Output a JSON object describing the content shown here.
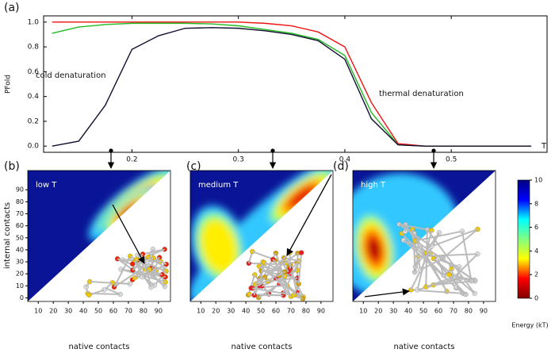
{
  "chart_data": [
    {
      "type": "line",
      "panel": "(a)",
      "ylabel": "PFold",
      "xlabel": "T",
      "annotations": [
        "cold denaturation",
        "thermal denaturation"
      ],
      "x": [
        0.125,
        0.15,
        0.175,
        0.2,
        0.225,
        0.25,
        0.275,
        0.3,
        0.325,
        0.35,
        0.375,
        0.4,
        0.425,
        0.45,
        0.475,
        0.5,
        0.525,
        0.55,
        0.575
      ],
      "series": [
        {
          "color": "#22bb22",
          "values": [
            0.91,
            0.96,
            0.98,
            0.99,
            0.99,
            0.99,
            0.985,
            0.97,
            0.94,
            0.91,
            0.86,
            0.73,
            0.27,
            0.01,
            0,
            0,
            0,
            0,
            0
          ]
        },
        {
          "color": "#ee1111",
          "values": [
            1,
            1,
            1,
            1,
            1,
            1,
            1,
            1,
            0.99,
            0.97,
            0.92,
            0.8,
            0.35,
            0.02,
            0,
            0,
            0,
            0,
            0
          ]
        },
        {
          "color": "#101030",
          "values": [
            0,
            0.04,
            0.33,
            0.78,
            0.89,
            0.95,
            0.955,
            0.95,
            0.93,
            0.9,
            0.85,
            0.7,
            0.22,
            0.01,
            0,
            0,
            0,
            0,
            0
          ]
        }
      ],
      "xlim": [
        0.117,
        0.59
      ],
      "ylim": [
        -0.05,
        1.05
      ],
      "xticks": [
        0.2,
        0.3,
        0.4,
        0.5
      ],
      "yticks": [
        {
          "value": 0,
          "label": "0.0"
        },
        {
          "value": 0.2,
          "label": "0.2"
        },
        {
          "value": 0.4,
          "label": "0.4"
        },
        {
          "value": 0.6,
          "label": "0.6"
        },
        {
          "value": 0.8,
          "label": "0.8"
        },
        {
          "value": 1,
          "label": "1.0"
        }
      ]
    },
    {
      "type": "heatmap",
      "panel": "(b)",
      "title": "low T",
      "xlabel": "native contacts",
      "ylabel": "internal contacts",
      "xlim": [
        3,
        98
      ],
      "ylim": [
        -3,
        106
      ],
      "xticks": [
        10,
        20,
        30,
        40,
        50,
        60,
        70,
        80,
        90
      ],
      "yticks": [
        0,
        10,
        20,
        30,
        40,
        50,
        60,
        70,
        80,
        90
      ]
    },
    {
      "type": "heatmap",
      "panel": "(c)",
      "title": "medium T",
      "xlabel": "native contacts",
      "xlim": [
        3,
        98
      ],
      "ylim": [
        -3,
        106
      ],
      "xticks": [
        10,
        20,
        30,
        40,
        50,
        60,
        70,
        80,
        90
      ]
    },
    {
      "type": "heatmap",
      "panel": "(d)",
      "title": "high T",
      "xlabel": "native contacts",
      "xlim": [
        3,
        98
      ],
      "ylim": [
        -3,
        106
      ],
      "xticks": [
        10,
        20,
        30,
        40,
        50,
        60,
        70,
        80,
        90
      ]
    },
    {
      "type": "colorbar",
      "label": "Energy (kT)",
      "ylim": [
        0,
        10
      ],
      "yticks": [
        0,
        2,
        4,
        6,
        8,
        10
      ],
      "colormap": [
        "#800000",
        "#ff0000",
        "#ffff00",
        "#80ff80",
        "#00ffff",
        "#0000ff",
        "#000080"
      ]
    }
  ]
}
